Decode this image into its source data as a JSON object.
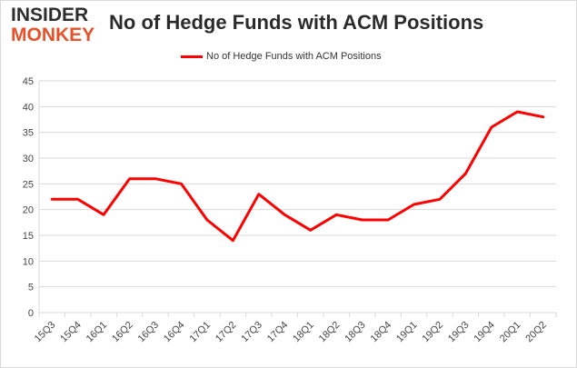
{
  "logo": {
    "line1": "INSIDER",
    "line2": "MONKEY"
  },
  "colors": {
    "series": "#ff0000",
    "grid": "#d9d9d9",
    "logo_accent": "#e8522a"
  },
  "chart_data": {
    "type": "line",
    "title": "No of Hedge Funds with ACM Positions",
    "xlabel": "",
    "ylabel": "",
    "ylim": [
      0,
      45
    ],
    "yticks": [
      0,
      5,
      10,
      15,
      20,
      25,
      30,
      35,
      40,
      45
    ],
    "grid": "horizontal",
    "legend_position": "top",
    "categories": [
      "15Q3",
      "15Q4",
      "16Q1",
      "16Q2",
      "16Q3",
      "16Q4",
      "17Q1",
      "17Q2",
      "17Q3",
      "17Q4",
      "18Q1",
      "18Q2",
      "18Q3",
      "18Q4",
      "19Q1",
      "19Q2",
      "19Q3",
      "19Q4",
      "20Q1",
      "20Q2"
    ],
    "series": [
      {
        "name": "No of Hedge Funds with ACM Positions",
        "values": [
          22,
          22,
          19,
          26,
          26,
          25,
          18,
          14,
          23,
          19,
          16,
          19,
          18,
          18,
          21,
          22,
          27,
          36,
          39,
          38
        ]
      }
    ]
  }
}
